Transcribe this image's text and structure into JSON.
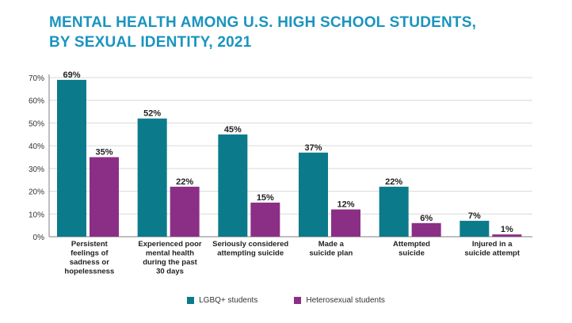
{
  "title": {
    "line1": "MENTAL HEALTH AMONG U.S. HIGH SCHOOL STUDENTS,",
    "line2": "BY SEXUAL IDENTITY, 2021"
  },
  "colors": {
    "title": "#1a94bf",
    "lgbq": "#0b7b8b",
    "heterosexual": "#8b2f86",
    "axis": "#7f7f7f",
    "grid": "#d9d9d9"
  },
  "chart_data": {
    "type": "bar",
    "categories": [
      [
        "Persistent",
        "feelings of",
        "sadness or",
        "hopelessness"
      ],
      [
        "Experienced poor",
        "mental health",
        "during the past",
        "30 days"
      ],
      [
        "Seriously considered",
        "attempting suicide"
      ],
      [
        "Made a",
        "suicide plan"
      ],
      [
        "Attempted",
        "suicide"
      ],
      [
        "Injured in a",
        "suicide attempt"
      ]
    ],
    "series": [
      {
        "name": "LGBQ+ students",
        "values": [
          69,
          52,
          45,
          37,
          22,
          7
        ],
        "color": "#0b7b8b"
      },
      {
        "name": "Heterosexual students",
        "values": [
          35,
          22,
          15,
          12,
          6,
          1
        ],
        "color": "#8b2f86"
      }
    ],
    "y_ticks": [
      "0%",
      "10%",
      "20%",
      "30%",
      "40%",
      "50%",
      "60%",
      "70%"
    ],
    "ylim": [
      0,
      70
    ],
    "value_suffix": "%",
    "grid": true,
    "legend_position": "bottom"
  }
}
